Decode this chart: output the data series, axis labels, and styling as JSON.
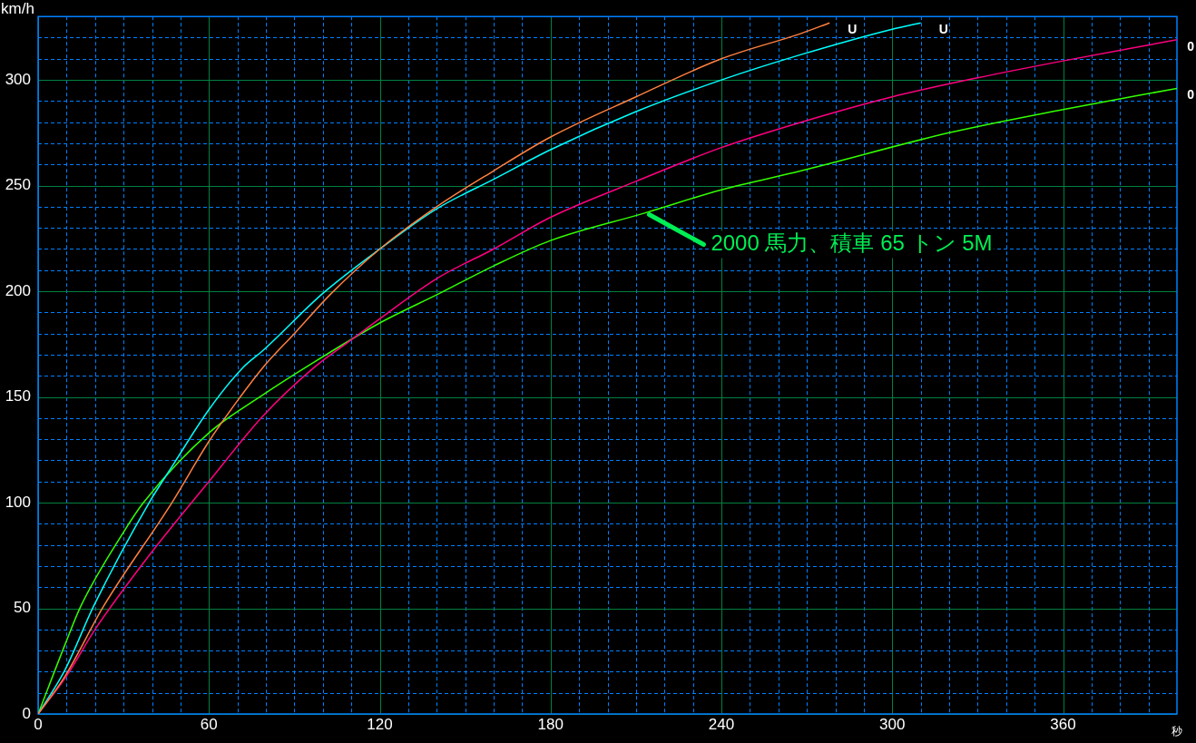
{
  "chart_data": {
    "type": "line",
    "xlabel": "秒",
    "ylabel": "km/h",
    "xlim": [
      0,
      400
    ],
    "ylim": [
      0,
      330
    ],
    "xticks": [
      0,
      {
        "value": 10,
        "label": null
      },
      {
        "value": 20,
        "label": null
      },
      {
        "value": 30,
        "label": null
      },
      {
        "value": 40,
        "label": null
      },
      {
        "value": 50,
        "label": null
      },
      60,
      {
        "value": 70,
        "label": null
      },
      {
        "value": 80,
        "label": null
      },
      {
        "value": 90,
        "label": null
      },
      {
        "value": 100,
        "label": null
      },
      {
        "value": 110,
        "label": null
      },
      120,
      {
        "value": 130,
        "label": null
      },
      {
        "value": 140,
        "label": null
      },
      {
        "value": 150,
        "label": null
      },
      {
        "value": 160,
        "label": null
      },
      {
        "value": 170,
        "label": null
      },
      180,
      {
        "value": 190,
        "label": null
      },
      {
        "value": 200,
        "label": null
      },
      {
        "value": 210,
        "label": null
      },
      {
        "value": 220,
        "label": null
      },
      {
        "value": 230,
        "label": null
      },
      240,
      {
        "value": 250,
        "label": null
      },
      {
        "value": 260,
        "label": null
      },
      {
        "value": 270,
        "label": null
      },
      {
        "value": 280,
        "label": null
      },
      {
        "value": 290,
        "label": null
      },
      300,
      {
        "value": 310,
        "label": null
      },
      {
        "value": 320,
        "label": null
      },
      {
        "value": 330,
        "label": null
      },
      {
        "value": 340,
        "label": null
      },
      {
        "value": 350,
        "label": null
      },
      360,
      {
        "value": 370,
        "label": null
      },
      {
        "value": 380,
        "label": null
      },
      {
        "value": 390,
        "label": null
      }
    ],
    "yticks": [
      0,
      {
        "value": 10,
        "label": null
      },
      {
        "value": 20,
        "label": null
      },
      {
        "value": 30,
        "label": null
      },
      {
        "value": 40,
        "label": null
      },
      50,
      {
        "value": 60,
        "label": null
      },
      {
        "value": 70,
        "label": null
      },
      {
        "value": 80,
        "label": null
      },
      {
        "value": 90,
        "label": null
      },
      100,
      {
        "value": 110,
        "label": null
      },
      {
        "value": 120,
        "label": null
      },
      {
        "value": 130,
        "label": null
      },
      {
        "value": 140,
        "label": null
      },
      150,
      {
        "value": 160,
        "label": null
      },
      {
        "value": 170,
        "label": null
      },
      {
        "value": 180,
        "label": null
      },
      {
        "value": 190,
        "label": null
      },
      200,
      {
        "value": 210,
        "label": null
      },
      {
        "value": 220,
        "label": null
      },
      {
        "value": 230,
        "label": null
      },
      {
        "value": 240,
        "label": null
      },
      250,
      {
        "value": 260,
        "label": null
      },
      {
        "value": 270,
        "label": null
      },
      {
        "value": 280,
        "label": null
      },
      {
        "value": 290,
        "label": null
      },
      300,
      {
        "value": 310,
        "label": null
      },
      {
        "value": 320,
        "label": null
      }
    ],
    "grid": true,
    "legend": false,
    "marker": "none",
    "line_style": "solid",
    "series": [
      {
        "name": "U",
        "color": "#ff8040",
        "x": [
          0,
          9.5,
          23,
          47,
          60,
          71,
          79,
          90,
          103,
          120,
          140,
          160,
          180,
          210,
          240,
          268,
          278
        ],
        "values": [
          0,
          18,
          51,
          100,
          129,
          150,
          164,
          180,
          199,
          220,
          240,
          257,
          273,
          292,
          310,
          322,
          327
        ]
      },
      {
        "name": "U",
        "color": "#00ffff",
        "x": [
          0,
          9.5,
          19.5,
          39,
          47,
          60,
          72,
          79,
          100,
          120,
          140,
          160,
          180,
          210,
          240,
          268,
          300,
          310
        ],
        "values": [
          0,
          21,
          51,
          100,
          117,
          144,
          164,
          172,
          199,
          220,
          239,
          253,
          267,
          285,
          300,
          312,
          324,
          327
        ]
      },
      {
        "name": "0",
        "color": "#ff0080",
        "x": [
          0,
          10,
          20,
          39,
          60,
          79,
          97,
          110,
          120,
          140,
          160,
          180,
          210,
          240,
          268,
          300,
          330,
          360,
          400
        ],
        "values": [
          0,
          18,
          40,
          75,
          110,
          141,
          164,
          177,
          187,
          206,
          220,
          235,
          252,
          268,
          280,
          292,
          301,
          309,
          319
        ]
      },
      {
        "name": "0",
        "color": "#33ff00",
        "x": [
          0,
          9.5,
          15,
          30,
          37,
          60,
          79,
          94,
          120,
          141,
          160,
          180,
          213,
          240,
          268,
          320,
          360,
          400
        ],
        "values": [
          0,
          33,
          51,
          86,
          100,
          133,
          151,
          164,
          185,
          199,
          212,
          224,
          237,
          248,
          257,
          275,
          286,
          296
        ]
      }
    ],
    "annotations": [
      {
        "text": "2000 馬力、積車 65 トン 5M",
        "x": 214,
        "y": 238
      }
    ]
  }
}
